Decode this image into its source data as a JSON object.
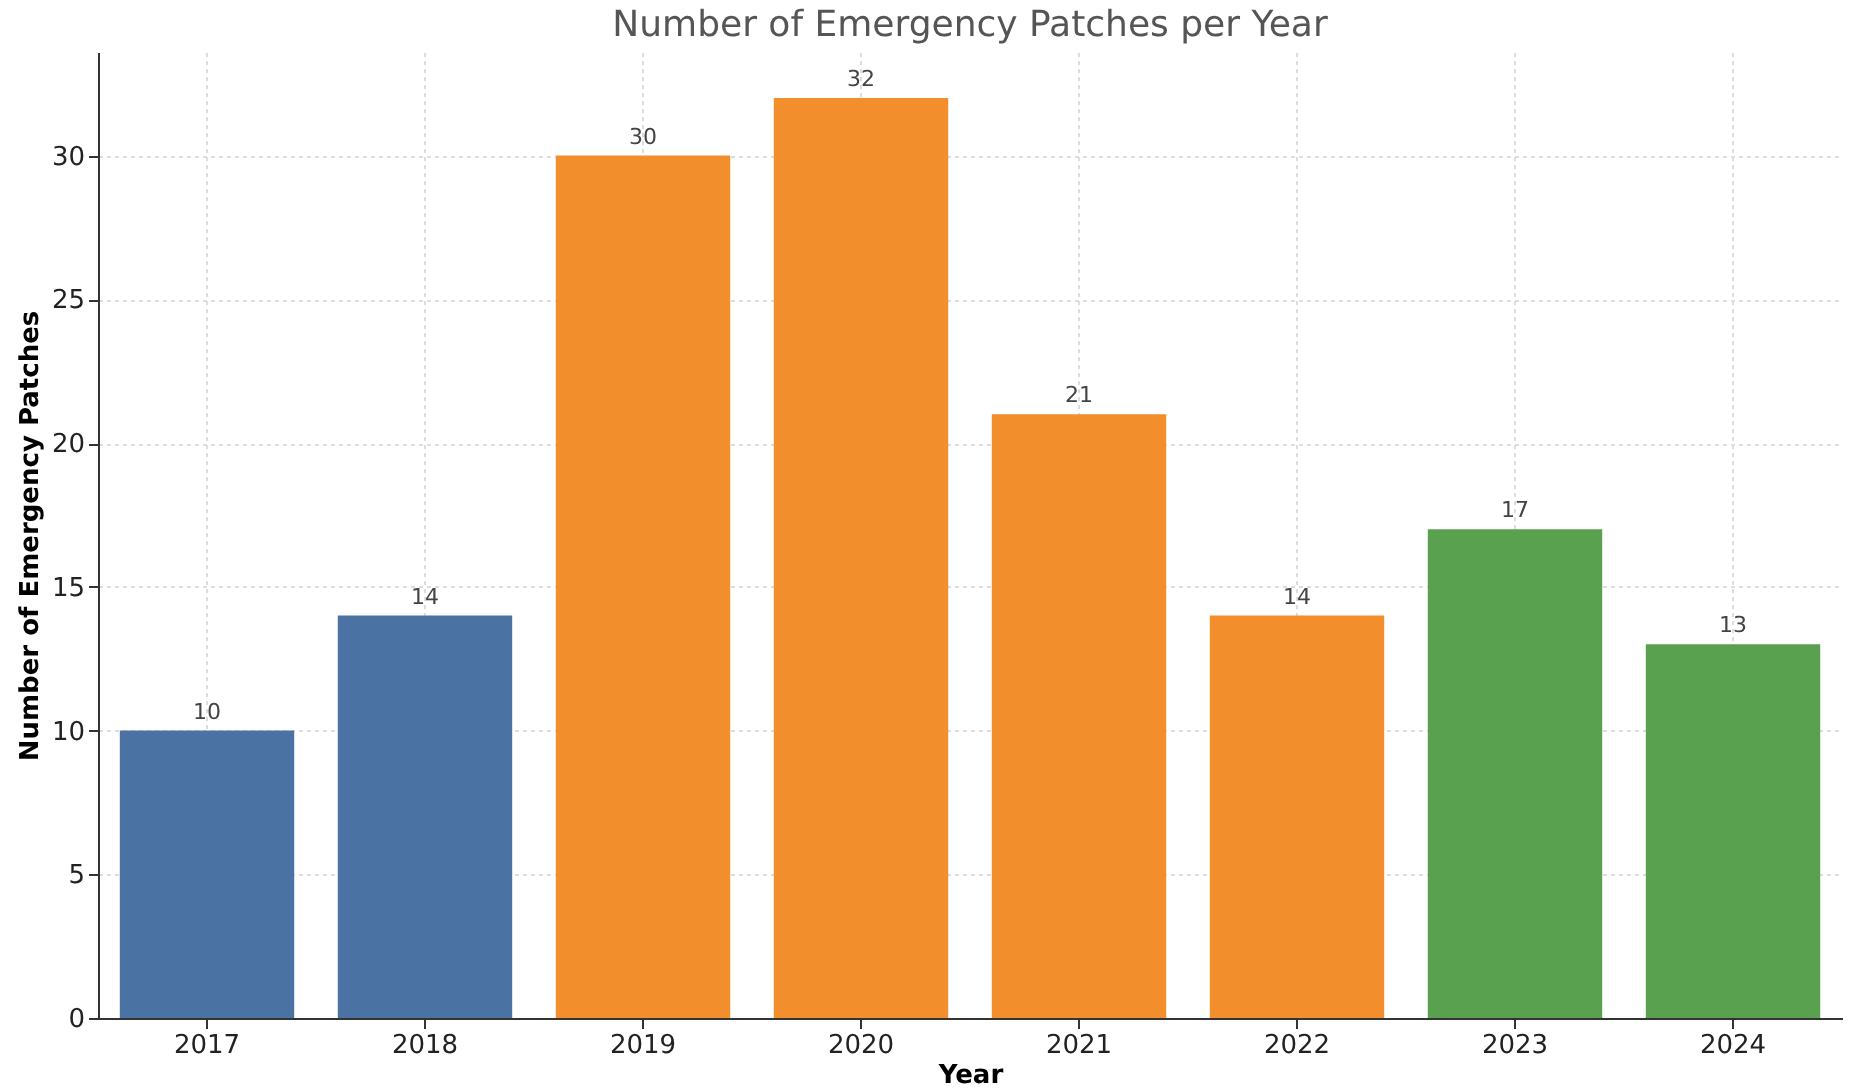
{
  "chart_data": {
    "type": "bar",
    "title": "Number of Emergency Patches per Year",
    "xlabel": "Year",
    "ylabel": "Number of Emergency Patches",
    "categories": [
      "2017",
      "2018",
      "2019",
      "2020",
      "2021",
      "2022",
      "2023",
      "2024"
    ],
    "values": [
      10,
      14,
      30,
      32,
      21,
      14,
      17,
      13
    ],
    "colors": [
      "#4a72a2",
      "#4a72a2",
      "#f28e2b",
      "#f28e2b",
      "#f28e2b",
      "#f28e2b",
      "#59a14f",
      "#59a14f"
    ],
    "ylim": [
      0,
      33.6
    ],
    "yticks": [
      0,
      5,
      10,
      15,
      20,
      25,
      30
    ],
    "grid": true,
    "data_labels": true
  }
}
